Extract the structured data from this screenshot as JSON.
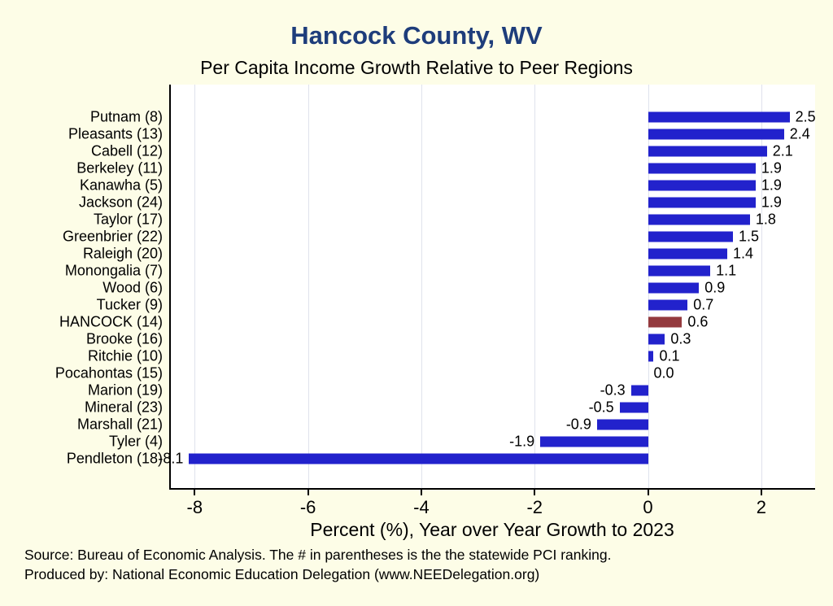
{
  "header": {
    "title": "Hancock County, WV",
    "subtitle": "Per Capita Income Growth Relative to Peer Regions"
  },
  "footer": {
    "source": "Source: Bureau of Economic Analysis. The # in parentheses is the the statewide PCI ranking.",
    "produced_by": "Produced by: National Economic Education Delegation (www.NEEDelegation.org)"
  },
  "chart_data": {
    "type": "bar",
    "orientation": "horizontal",
    "title": "Hancock County, WV",
    "subtitle": "Per Capita Income Growth Relative to Peer Regions",
    "xlabel": "Percent (%), Year over Year Growth to 2023",
    "categories": [
      "Putnam (8)",
      "Pleasants (13)",
      "Cabell (12)",
      "Berkeley (11)",
      "Kanawha (5)",
      "Jackson (24)",
      "Taylor (17)",
      "Greenbrier (22)",
      "Raleigh (20)",
      "Monongalia (7)",
      "Wood (6)",
      "Tucker (9)",
      "HANCOCK (14)",
      "Brooke (16)",
      "Ritchie (10)",
      "Pocahontas (15)",
      "Marion (19)",
      "Mineral (23)",
      "Marshall (21)",
      "Tyler (4)",
      "Pendleton (18)"
    ],
    "values": [
      2.5,
      2.4,
      2.1,
      1.9,
      1.9,
      1.9,
      1.8,
      1.5,
      1.4,
      1.1,
      0.9,
      0.7,
      0.6,
      0.3,
      0.1,
      0.0,
      -0.3,
      -0.5,
      -0.9,
      -1.9,
      -8.1
    ],
    "value_labels": [
      "2.5",
      "2.4",
      "2.1",
      "1.9",
      "1.9",
      "1.9",
      "1.8",
      "1.5",
      "1.4",
      "1.1",
      "0.9",
      "0.7",
      "0.6",
      "0.3",
      "0.1",
      "0.0",
      "-0.3",
      "-0.5",
      "-0.9",
      "-1.9",
      "-8.1"
    ],
    "highlight_index": 12,
    "highlight_category": "HANCOCK (14)",
    "xlim": [
      -8.45,
      2.95
    ],
    "xticks": [
      -8,
      -6,
      -4,
      -2,
      0,
      2
    ],
    "grid": true,
    "legend": false,
    "colors": {
      "bar": "#2222cc",
      "highlight": "#943a3e",
      "title": "#1e3d7b",
      "gridline": "#dfe2ec",
      "background": "#fdfde7",
      "plot_background": "#ffffff"
    }
  }
}
